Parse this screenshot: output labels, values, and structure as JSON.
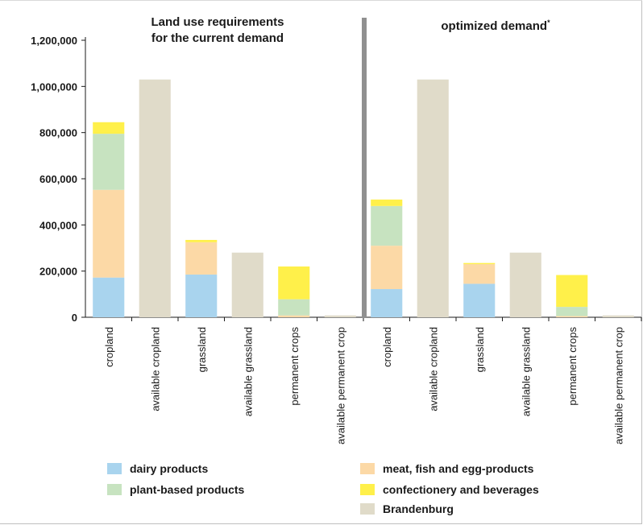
{
  "panels": [
    {
      "title": "Land use requirements\nfor the current demand"
    },
    {
      "title": "optimized demand",
      "title_mark": "*"
    }
  ],
  "legend": [
    {
      "name": "dairy products",
      "color": "#a9d4ee"
    },
    {
      "name": "meat, fish and egg-products",
      "color": "#fcd9a6"
    },
    {
      "name": "plant-based products",
      "color": "#c7e3c0"
    },
    {
      "name": "confectionery and beverages",
      "color": "#fff04a"
    },
    {
      "name": "Brandenburg",
      "color": "#e0dbc9"
    }
  ],
  "chart_data": {
    "type": "bar",
    "stacked": true,
    "ylim": [
      0,
      1200000
    ],
    "yticks": [
      0,
      200000,
      400000,
      600000,
      800000,
      1000000,
      1200000
    ],
    "ytick_labels": [
      "0",
      "200,000",
      "400,000",
      "600,000",
      "800,000",
      "1,000,000",
      "1,200,000"
    ],
    "categories": [
      "cropland",
      "available cropland",
      "grassland",
      "available grassland",
      "permanent crops",
      "available permanent crop",
      "cropland",
      "available cropland",
      "grassland",
      "available grassland",
      "permanent crops",
      "available permanent crop"
    ],
    "series": [
      {
        "name": "dairy products",
        "color": "#a9d4ee",
        "values": [
          172000,
          0,
          185000,
          0,
          0,
          0,
          122000,
          0,
          145000,
          0,
          0,
          0
        ]
      },
      {
        "name": "meat, fish and egg-products",
        "color": "#fcd9a6",
        "values": [
          380000,
          0,
          140000,
          0,
          8000,
          0,
          188000,
          0,
          85000,
          0,
          5000,
          0
        ]
      },
      {
        "name": "plant-based products",
        "color": "#c7e3c0",
        "values": [
          243000,
          0,
          0,
          0,
          70000,
          0,
          172000,
          0,
          0,
          0,
          40000,
          0
        ]
      },
      {
        "name": "confectionery and beverages",
        "color": "#fff04a",
        "values": [
          50000,
          0,
          10000,
          0,
          142000,
          0,
          28000,
          0,
          5000,
          0,
          138000,
          0
        ]
      },
      {
        "name": "Brandenburg",
        "color": "#e0dbc9",
        "values": [
          0,
          1030000,
          0,
          280000,
          0,
          8000,
          0,
          1030000,
          0,
          280000,
          0,
          8000
        ]
      }
    ],
    "grid": false,
    "legend_position": "bottom"
  }
}
